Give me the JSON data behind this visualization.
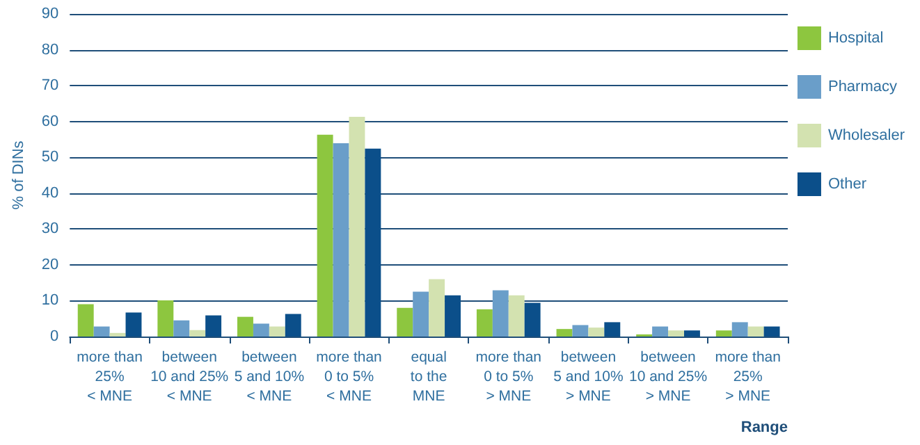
{
  "chart_data": {
    "type": "bar",
    "xlabel": "Range",
    "ylabel": "% of DINs",
    "categories": [
      "more than\n25%\n< MNE",
      "between\n10 and 25%\n< MNE",
      "between\n5 and 10%\n< MNE",
      "more than\n0 to 5%\n< MNE",
      "equal\nto the\nMNE",
      "more than\n0 to 5%\n> MNE",
      "between\n5 and 10%\n> MNE",
      "between\n10 and 25%\n> MNE",
      "more than\n25%\n> MNE"
    ],
    "series": [
      {
        "name": "Hospital",
        "color": "#8dc63f",
        "values": [
          9.0,
          10.1,
          5.5,
          56.3,
          8.0,
          7.6,
          2.1,
          0.6,
          1.7
        ]
      },
      {
        "name": "Pharmacy",
        "color": "#6a9ec9",
        "values": [
          2.8,
          4.5,
          3.6,
          53.9,
          12.5,
          12.9,
          3.2,
          2.8,
          4.0
        ]
      },
      {
        "name": "Wholesaler",
        "color": "#d3e2b0",
        "values": [
          1.0,
          1.8,
          2.8,
          61.3,
          16.0,
          11.5,
          2.5,
          1.7,
          2.8
        ]
      },
      {
        "name": "Other",
        "color": "#0b4f8a",
        "values": [
          6.7,
          5.9,
          6.3,
          52.4,
          11.5,
          9.4,
          4.0,
          1.7,
          2.8
        ]
      }
    ],
    "ylim": [
      0,
      90
    ],
    "yticks": [
      0,
      10,
      20,
      30,
      40,
      50,
      60,
      70,
      80,
      90
    ],
    "grid": "y",
    "legend": "top right"
  }
}
